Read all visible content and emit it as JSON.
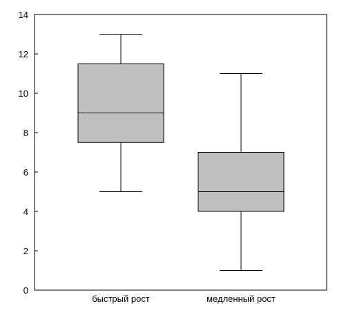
{
  "chart_data": {
    "type": "boxplot",
    "title": "",
    "xlabel": "",
    "ylabel": "",
    "ylim": [
      0,
      14
    ],
    "yticks": [
      0,
      2,
      4,
      6,
      8,
      10,
      12,
      14
    ],
    "ytick_labels": [
      "0",
      "2",
      "4",
      "6",
      "8",
      "10",
      "12",
      "14"
    ],
    "grid": false,
    "box_color": "#c0c0c0",
    "categories": [
      "быстрый рост",
      "медленный рост"
    ],
    "boxes": [
      {
        "category": "быстрый рост",
        "min": 5,
        "q1": 7.5,
        "median": 9,
        "q3": 11.5,
        "max": 13
      },
      {
        "category": "медленный рост",
        "min": 1,
        "q1": 4,
        "median": 5,
        "q3": 7,
        "max": 11
      }
    ]
  }
}
